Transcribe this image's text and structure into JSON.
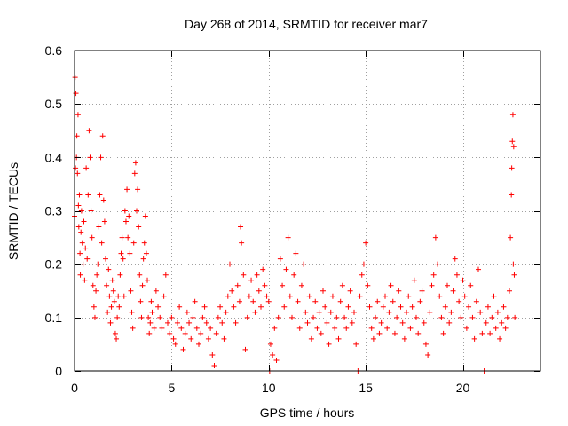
{
  "chart_data": {
    "type": "scatter",
    "title": "Day 268 of 2014, SRMTID for receiver mar7",
    "xlabel": "GPS time / hours",
    "ylabel": "SRMTID / TECUs",
    "xlim": [
      0,
      24
    ],
    "ylim": [
      0,
      0.6
    ],
    "xticks": [
      0,
      5,
      10,
      15,
      20
    ],
    "yticks": [
      0,
      0.1,
      0.2,
      0.3,
      0.4,
      0.5,
      0.6
    ],
    "xtick_labels": [
      "0",
      "5",
      "10",
      "15",
      "20"
    ],
    "ytick_labels": [
      "0",
      "0.1",
      "0.2",
      "0.3",
      "0.4",
      "0.5",
      "0.6"
    ],
    "grid": true,
    "marker": "+",
    "series": [
      {
        "name": "SRMTID",
        "color": "#ff0000",
        "points": [
          [
            0.0,
            0.29
          ],
          [
            0.03,
            0.55
          ],
          [
            0.05,
            0.38
          ],
          [
            0.07,
            0.52
          ],
          [
            0.1,
            0.4
          ],
          [
            0.12,
            0.44
          ],
          [
            0.15,
            0.37
          ],
          [
            0.18,
            0.48
          ],
          [
            0.2,
            0.31
          ],
          [
            0.22,
            0.27
          ],
          [
            0.25,
            0.33
          ],
          [
            0.28,
            0.22
          ],
          [
            0.3,
            0.18
          ],
          [
            0.33,
            0.26
          ],
          [
            0.36,
            0.3
          ],
          [
            0.4,
            0.24
          ],
          [
            0.44,
            0.2
          ],
          [
            0.48,
            0.28
          ],
          [
            0.52,
            0.17
          ],
          [
            0.56,
            0.23
          ],
          [
            0.6,
            0.38
          ],
          [
            0.65,
            0.21
          ],
          [
            0.7,
            0.33
          ],
          [
            0.75,
            0.45
          ],
          [
            0.8,
            0.4
          ],
          [
            0.85,
            0.3
          ],
          [
            0.9,
            0.25
          ],
          [
            0.95,
            0.16
          ],
          [
            1.0,
            0.12
          ],
          [
            1.05,
            0.1
          ],
          [
            1.1,
            0.15
          ],
          [
            1.15,
            0.18
          ],
          [
            1.2,
            0.2
          ],
          [
            1.25,
            0.27
          ],
          [
            1.3,
            0.33
          ],
          [
            1.35,
            0.4
          ],
          [
            1.4,
            0.24
          ],
          [
            1.45,
            0.44
          ],
          [
            1.5,
            0.32
          ],
          [
            1.55,
            0.28
          ],
          [
            1.6,
            0.21
          ],
          [
            1.65,
            0.16
          ],
          [
            1.7,
            0.11
          ],
          [
            1.75,
            0.19
          ],
          [
            1.8,
            0.14
          ],
          [
            1.85,
            0.09
          ],
          [
            1.9,
            0.12
          ],
          [
            1.95,
            0.17
          ],
          [
            2.0,
            0.15
          ],
          [
            2.05,
            0.13
          ],
          [
            2.1,
            0.07
          ],
          [
            2.15,
            0.06
          ],
          [
            2.2,
            0.1
          ],
          [
            2.25,
            0.14
          ],
          [
            2.3,
            0.12
          ],
          [
            2.35,
            0.18
          ],
          [
            2.4,
            0.22
          ],
          [
            2.45,
            0.25
          ],
          [
            2.5,
            0.21
          ],
          [
            2.55,
            0.14
          ],
          [
            2.6,
            0.3
          ],
          [
            2.65,
            0.28
          ],
          [
            2.7,
            0.34
          ],
          [
            2.75,
            0.25
          ],
          [
            2.8,
            0.29
          ],
          [
            2.85,
            0.22
          ],
          [
            2.9,
            0.15
          ],
          [
            2.95,
            0.11
          ],
          [
            3.0,
            0.08
          ],
          [
            3.05,
            0.24
          ],
          [
            3.1,
            0.37
          ],
          [
            3.15,
            0.39
          ],
          [
            3.2,
            0.3
          ],
          [
            3.25,
            0.34
          ],
          [
            3.3,
            0.27
          ],
          [
            3.35,
            0.18
          ],
          [
            3.4,
            0.13
          ],
          [
            3.45,
            0.1
          ],
          [
            3.5,
            0.16
          ],
          [
            3.55,
            0.21
          ],
          [
            3.6,
            0.24
          ],
          [
            3.65,
            0.29
          ],
          [
            3.7,
            0.22
          ],
          [
            3.75,
            0.17
          ],
          [
            3.8,
            0.1
          ],
          [
            3.85,
            0.07
          ],
          [
            3.9,
            0.09
          ],
          [
            3.95,
            0.13
          ],
          [
            4.0,
            0.11
          ],
          [
            4.1,
            0.08
          ],
          [
            4.2,
            0.15
          ],
          [
            4.3,
            0.12
          ],
          [
            4.4,
            0.1
          ],
          [
            4.5,
            0.08
          ],
          [
            4.6,
            0.14
          ],
          [
            4.7,
            0.18
          ],
          [
            4.8,
            0.09
          ],
          [
            4.9,
            0.07
          ],
          [
            5.0,
            0.1
          ],
          [
            5.1,
            0.06
          ],
          [
            5.2,
            0.05
          ],
          [
            5.3,
            0.09
          ],
          [
            5.4,
            0.12
          ],
          [
            5.5,
            0.08
          ],
          [
            5.6,
            0.04
          ],
          [
            5.7,
            0.07
          ],
          [
            5.8,
            0.11
          ],
          [
            5.9,
            0.09
          ],
          [
            6.0,
            0.06
          ],
          [
            6.1,
            0.1
          ],
          [
            6.2,
            0.13
          ],
          [
            6.3,
            0.08
          ],
          [
            6.4,
            0.05
          ],
          [
            6.5,
            0.07
          ],
          [
            6.6,
            0.1
          ],
          [
            6.7,
            0.12
          ],
          [
            6.8,
            0.09
          ],
          [
            6.9,
            0.06
          ],
          [
            7.0,
            0.08
          ],
          [
            7.1,
            0.03
          ],
          [
            7.2,
            0.01
          ],
          [
            7.3,
            0.07
          ],
          [
            7.4,
            0.1
          ],
          [
            7.5,
            0.12
          ],
          [
            7.6,
            0.09
          ],
          [
            7.7,
            0.06
          ],
          [
            7.8,
            0.11
          ],
          [
            7.9,
            0.14
          ],
          [
            8.0,
            0.2
          ],
          [
            8.1,
            0.15
          ],
          [
            8.2,
            0.12
          ],
          [
            8.3,
            0.09
          ],
          [
            8.4,
            0.16
          ],
          [
            8.5,
            0.13
          ],
          [
            8.55,
            0.27
          ],
          [
            8.6,
            0.24
          ],
          [
            8.7,
            0.18
          ],
          [
            8.8,
            0.04
          ],
          [
            8.9,
            0.1
          ],
          [
            9.0,
            0.14
          ],
          [
            9.1,
            0.17
          ],
          [
            9.2,
            0.13
          ],
          [
            9.3,
            0.11
          ],
          [
            9.4,
            0.18
          ],
          [
            9.5,
            0.15
          ],
          [
            9.6,
            0.12
          ],
          [
            9.7,
            0.19
          ],
          [
            9.8,
            0.16
          ],
          [
            9.9,
            0.14
          ],
          [
            10.0,
            0.13
          ],
          [
            10.05,
            0.0
          ],
          [
            10.1,
            0.05
          ],
          [
            10.2,
            0.03
          ],
          [
            10.3,
            0.08
          ],
          [
            10.4,
            0.02
          ],
          [
            10.5,
            0.1
          ],
          [
            10.6,
            0.21
          ],
          [
            10.7,
            0.16
          ],
          [
            10.8,
            0.12
          ],
          [
            10.9,
            0.19
          ],
          [
            11.0,
            0.25
          ],
          [
            11.1,
            0.14
          ],
          [
            11.2,
            0.1
          ],
          [
            11.3,
            0.18
          ],
          [
            11.4,
            0.22
          ],
          [
            11.5,
            0.13
          ],
          [
            11.6,
            0.08
          ],
          [
            11.7,
            0.16
          ],
          [
            11.8,
            0.2
          ],
          [
            11.9,
            0.11
          ],
          [
            12.0,
            0.09
          ],
          [
            12.1,
            0.14
          ],
          [
            12.2,
            0.06
          ],
          [
            12.3,
            0.1
          ],
          [
            12.4,
            0.13
          ],
          [
            12.5,
            0.08
          ],
          [
            12.6,
            0.11
          ],
          [
            12.7,
            0.07
          ],
          [
            12.8,
            0.15
          ],
          [
            12.9,
            0.12
          ],
          [
            13.0,
            0.09
          ],
          [
            13.1,
            0.05
          ],
          [
            13.2,
            0.11
          ],
          [
            13.3,
            0.14
          ],
          [
            13.4,
            0.08
          ],
          [
            13.5,
            0.1
          ],
          [
            13.6,
            0.06
          ],
          [
            13.7,
            0.13
          ],
          [
            13.8,
            0.16
          ],
          [
            13.9,
            0.1
          ],
          [
            14.0,
            0.08
          ],
          [
            14.1,
            0.12
          ],
          [
            14.2,
            0.15
          ],
          [
            14.3,
            0.09
          ],
          [
            14.4,
            0.11
          ],
          [
            14.5,
            0.05
          ],
          [
            14.6,
            0.0
          ],
          [
            14.7,
            0.14
          ],
          [
            14.8,
            0.18
          ],
          [
            14.9,
            0.2
          ],
          [
            15.0,
            0.24
          ],
          [
            15.1,
            0.16
          ],
          [
            15.2,
            0.12
          ],
          [
            15.3,
            0.08
          ],
          [
            15.4,
            0.06
          ],
          [
            15.5,
            0.1
          ],
          [
            15.6,
            0.13
          ],
          [
            15.7,
            0.07
          ],
          [
            15.8,
            0.09
          ],
          [
            15.9,
            0.12
          ],
          [
            16.0,
            0.14
          ],
          [
            16.1,
            0.08
          ],
          [
            16.2,
            0.11
          ],
          [
            16.3,
            0.16
          ],
          [
            16.4,
            0.13
          ],
          [
            16.5,
            0.07
          ],
          [
            16.6,
            0.1
          ],
          [
            16.7,
            0.15
          ],
          [
            16.8,
            0.12
          ],
          [
            16.9,
            0.09
          ],
          [
            17.0,
            0.06
          ],
          [
            17.1,
            0.11
          ],
          [
            17.2,
            0.14
          ],
          [
            17.3,
            0.08
          ],
          [
            17.4,
            0.12
          ],
          [
            17.5,
            0.17
          ],
          [
            17.6,
            0.1
          ],
          [
            17.7,
            0.07
          ],
          [
            17.8,
            0.13
          ],
          [
            17.9,
            0.15
          ],
          [
            18.0,
            0.09
          ],
          [
            18.1,
            0.05
          ],
          [
            18.2,
            0.03
          ],
          [
            18.3,
            0.11
          ],
          [
            18.4,
            0.16
          ],
          [
            18.5,
            0.18
          ],
          [
            18.6,
            0.25
          ],
          [
            18.7,
            0.2
          ],
          [
            18.8,
            0.14
          ],
          [
            18.9,
            0.1
          ],
          [
            19.0,
            0.07
          ],
          [
            19.1,
            0.12
          ],
          [
            19.2,
            0.16
          ],
          [
            19.3,
            0.09
          ],
          [
            19.4,
            0.11
          ],
          [
            19.5,
            0.15
          ],
          [
            19.6,
            0.21
          ],
          [
            19.7,
            0.18
          ],
          [
            19.8,
            0.13
          ],
          [
            19.9,
            0.1
          ],
          [
            20.0,
            0.17
          ],
          [
            20.1,
            0.14
          ],
          [
            20.2,
            0.08
          ],
          [
            20.3,
            0.12
          ],
          [
            20.4,
            0.16
          ],
          [
            20.5,
            0.1
          ],
          [
            20.6,
            0.06
          ],
          [
            20.7,
            0.13
          ],
          [
            20.8,
            0.19
          ],
          [
            20.9,
            0.11
          ],
          [
            21.0,
            0.07
          ],
          [
            21.1,
            0.0
          ],
          [
            21.2,
            0.09
          ],
          [
            21.3,
            0.12
          ],
          [
            21.4,
            0.07
          ],
          [
            21.5,
            0.1
          ],
          [
            21.6,
            0.14
          ],
          [
            21.7,
            0.08
          ],
          [
            21.8,
            0.11
          ],
          [
            21.9,
            0.06
          ],
          [
            22.0,
            0.09
          ],
          [
            22.1,
            0.12
          ],
          [
            22.2,
            0.08
          ],
          [
            22.3,
            0.1
          ],
          [
            22.4,
            0.15
          ],
          [
            22.45,
            0.25
          ],
          [
            22.5,
            0.33
          ],
          [
            22.52,
            0.38
          ],
          [
            22.55,
            0.43
          ],
          [
            22.58,
            0.48
          ],
          [
            22.6,
            0.2
          ],
          [
            22.62,
            0.42
          ],
          [
            22.65,
            0.18
          ],
          [
            22.68,
            0.1
          ]
        ]
      }
    ]
  }
}
